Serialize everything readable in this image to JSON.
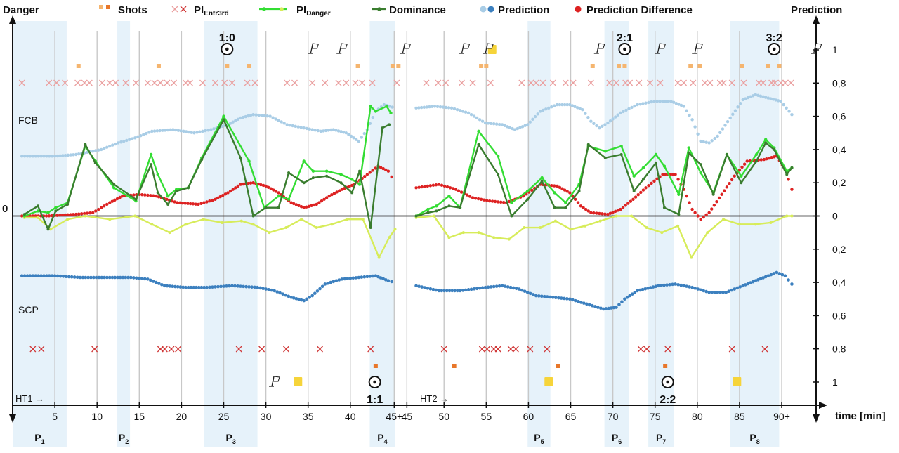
{
  "chart_data": {
    "type": "line",
    "title": "",
    "xlabel": "time [min]",
    "ylabel_left": "Danger",
    "ylabel_right": "Prediction",
    "team_top": "FCB",
    "team_bottom": "SCP",
    "zero_label": "0",
    "half_labels": [
      "HT1 →",
      "HT2 →"
    ],
    "ylim": [
      -1.0,
      1.0
    ],
    "y_ticks_right": [
      "1",
      "0,8",
      "0,6",
      "0,4",
      "0,2",
      "0",
      "0,2",
      "0,4",
      "0,6",
      "0,8",
      "1"
    ],
    "y_tick_values": [
      1,
      0.8,
      0.6,
      0.4,
      0.2,
      0,
      -0.2,
      -0.4,
      -0.6,
      -0.8,
      -1
    ],
    "x_ticks": [
      {
        "label": "5",
        "t": 5
      },
      {
        "label": "10",
        "t": 10
      },
      {
        "label": "15",
        "t": 15
      },
      {
        "label": "20",
        "t": 20
      },
      {
        "label": "25",
        "t": 25
      },
      {
        "label": "30",
        "t": 30
      },
      {
        "label": "35",
        "t": 35
      },
      {
        "label": "40",
        "t": 40
      },
      {
        "label": "45+",
        "t": 45.2
      },
      {
        "label": "45",
        "t": 46.7
      },
      {
        "label": "50",
        "t": 51.1
      },
      {
        "label": "55",
        "t": 56.1
      },
      {
        "label": "60",
        "t": 61.1
      },
      {
        "label": "65",
        "t": 66.1
      },
      {
        "label": "70",
        "t": 71.1
      },
      {
        "label": "75",
        "t": 76.1
      },
      {
        "label": "80",
        "t": 81.1
      },
      {
        "label": "85",
        "t": 86.1
      },
      {
        "label": "90+",
        "t": 91.1
      }
    ],
    "legend": [
      {
        "label": "Danger",
        "kind": "text"
      },
      {
        "label": "Shots",
        "kind": "square",
        "color": "#f0a050"
      },
      {
        "label": "PI",
        "sub": "Entr3rd",
        "kind": "cross",
        "color": "#e07070"
      },
      {
        "label": "PI",
        "sub": "Danger",
        "kind": "line",
        "color": "#33dd33"
      },
      {
        "label": "Dominance",
        "kind": "line",
        "color": "#3a7d2f"
      },
      {
        "label": "Prediction",
        "kind": "dots",
        "color": "#6fa8dc"
      },
      {
        "label": "Prediction Difference",
        "kind": "dot",
        "color": "#dd2222"
      }
    ],
    "periods": [
      {
        "label": "P",
        "sub": "1",
        "from": 0,
        "to": 6.4
      },
      {
        "label": "P",
        "sub": "2",
        "from": 12.4,
        "to": 13.9
      },
      {
        "label": "P",
        "sub": "3",
        "from": 22.7,
        "to": 29.0
      },
      {
        "label": "P",
        "sub": "4",
        "from": 42.3,
        "to": 45.3
      },
      {
        "label": "P",
        "sub": "5",
        "from": 61.0,
        "to": 63.7
      },
      {
        "label": "P",
        "sub": "6",
        "from": 70.1,
        "to": 73.0
      },
      {
        "label": "P",
        "sub": "7",
        "from": 75.3,
        "to": 78.3
      },
      {
        "label": "P",
        "sub": "8",
        "from": 85.0,
        "to": 90.8
      }
    ],
    "goals": [
      {
        "score": "1:0",
        "t": 25.4,
        "team": "top"
      },
      {
        "score": "2:1",
        "t": 72.5,
        "team": "top"
      },
      {
        "score": "3:2",
        "t": 90.2,
        "team": "top"
      },
      {
        "score": "1:1",
        "t": 42.9,
        "team": "bottom"
      },
      {
        "score": "2:2",
        "t": 77.6,
        "team": "bottom"
      }
    ],
    "flags_top": [
      35.3,
      38.7,
      46.2,
      53.2,
      56.0,
      69.2,
      76.4,
      80.8,
      94.9
    ],
    "flags_bottom": [
      30.7
    ],
    "cards_top": [
      56.8
    ],
    "cards_bottom": [
      33.8,
      63.5,
      85.8
    ],
    "shots_top": [
      7.8,
      17.3,
      25.4,
      28.0,
      40.9,
      45.0,
      45.7,
      55.5,
      56.1,
      68.7,
      71.8,
      72.5,
      80.3,
      81.4,
      86.4,
      89.5,
      90.8
    ],
    "shots_bottom": [
      43.0,
      52.3,
      64.6,
      77.3
    ],
    "pi_entr3rd_top": [
      1.1,
      4.3,
      5.2,
      6.2,
      7.7,
      8.5,
      9.1,
      10.6,
      11.5,
      12.2,
      13.4,
      14.6,
      16.0,
      16.8,
      17.5,
      18.3,
      19.1,
      20.5,
      21.0,
      22.5,
      24.0,
      25.1,
      26.0,
      27.8,
      28.7,
      32.5,
      33.4,
      35.5,
      37.0,
      38.6,
      39.5,
      40.6,
      41.4,
      42.6,
      45.5,
      49.0,
      50.4,
      51.3,
      53.2,
      54.5,
      56.6,
      60.3,
      61.4,
      62.0,
      62.8,
      64.0,
      65.5,
      66.4,
      68.5,
      70.7,
      71.5,
      72.6,
      73.1,
      74.2,
      75.5,
      76.7,
      78.8,
      79.5,
      80.6,
      82.0,
      82.6,
      83.8,
      84.2,
      85.2,
      86.6,
      88.4,
      88.9,
      89.9,
      90.3,
      91.0,
      91.5,
      92.2
    ],
    "pi_entr3rd_bottom": [
      2.4,
      3.4,
      9.7,
      17.5,
      18.0,
      18.8,
      19.6,
      26.8,
      29.5,
      32.4,
      36.4,
      42.4,
      51.1,
      55.6,
      56.2,
      57.0,
      57.5,
      59.0,
      59.6,
      61.3,
      63.3,
      74.4,
      75.1,
      77.6,
      85.2,
      89.1
    ],
    "x_pi_danger": [
      1.4,
      3.0,
      4.2,
      5.1,
      6.5,
      8.6,
      9.8,
      12.0,
      14.6,
      16.4,
      17.2,
      18.4,
      19.4,
      20.8,
      22.4,
      25.0,
      28.0,
      29.8,
      31.5,
      32.7,
      34.5,
      35.6,
      37.2,
      38.9,
      40.2,
      41.1,
      42.4,
      43.0,
      44.3,
      44.8
    ],
    "y_pi_danger": [
      0.0,
      0.03,
      0.02,
      0.05,
      0.08,
      0.42,
      0.33,
      0.17,
      0.09,
      0.37,
      0.25,
      0.12,
      0.16,
      0.17,
      0.35,
      0.6,
      0.33,
      0.05,
      0.12,
      0.1,
      0.33,
      0.27,
      0.27,
      0.25,
      0.22,
      0.19,
      0.66,
      0.63,
      0.66,
      0.62
    ],
    "x_dominance": [
      1.4,
      3.0,
      4.2,
      5.1,
      6.5,
      8.6,
      9.8,
      12.0,
      14.6,
      16.4,
      17.2,
      18.4,
      19.4,
      20.8,
      22.4,
      25.0,
      27.0,
      28.5,
      30.0,
      31.5,
      32.7,
      34.5,
      35.6,
      37.2,
      38.9,
      40.2,
      41.1,
      42.4,
      43.8,
      44.6
    ],
    "y_dominance": [
      0.01,
      0.06,
      -0.08,
      0.03,
      0.07,
      0.43,
      0.32,
      0.19,
      0.1,
      0.31,
      0.14,
      0.07,
      0.15,
      0.17,
      0.34,
      0.58,
      0.35,
      -0.0,
      0.05,
      0.05,
      0.26,
      0.2,
      0.23,
      0.24,
      0.2,
      0.14,
      0.27,
      -0.07,
      0.53,
      0.55
    ],
    "pi_danger_top2_x": [
      47.8,
      49.2,
      50.2,
      51.7,
      53.0,
      55.2,
      57.5,
      59.1,
      61.0,
      62.7,
      64.2,
      65.5,
      67.1,
      68.2,
      70.2,
      72.1,
      73.6,
      74.7,
      76.2,
      77.2,
      78.9,
      80.1,
      81.5,
      83.0,
      84.6,
      86.3,
      88.1,
      89.2,
      90.2,
      91.7,
      92.3
    ],
    "pi_danger_top2_y": [
      0.0,
      0.04,
      0.06,
      0.12,
      0.05,
      0.51,
      0.36,
      0.08,
      0.15,
      0.23,
      0.14,
      0.08,
      0.19,
      0.42,
      0.39,
      0.42,
      0.24,
      0.29,
      0.37,
      0.3,
      0.13,
      0.41,
      0.26,
      0.14,
      0.37,
      0.24,
      0.37,
      0.46,
      0.41,
      0.27,
      0.29
    ],
    "dominance_top2_x": [
      47.8,
      49.2,
      50.2,
      51.7,
      53.0,
      55.2,
      57.5,
      59.1,
      61.0,
      62.7,
      64.2,
      65.5,
      67.1,
      68.2,
      70.2,
      72.1,
      73.6,
      74.7,
      76.2,
      77.2,
      78.9,
      80.1,
      81.5,
      83.0,
      84.6,
      86.3,
      88.1,
      89.2,
      90.2,
      91.7,
      92.3
    ],
    "dominance_top2_y": [
      0.0,
      0.02,
      0.03,
      0.06,
      0.05,
      0.43,
      0.25,
      0.0,
      0.1,
      0.21,
      0.05,
      0.05,
      0.15,
      0.43,
      0.35,
      0.37,
      0.15,
      0.22,
      0.32,
      0.05,
      0.01,
      0.38,
      0.31,
      0.13,
      0.37,
      0.2,
      0.33,
      0.44,
      0.4,
      0.25,
      0.29
    ],
    "pi_danger_bottom_x": [
      1.4,
      3.0,
      4.5,
      6.5,
      8.6,
      11.5,
      14.5,
      16.5,
      18.6,
      20.5,
      22.6,
      24.8,
      27.1,
      28.5,
      30.4,
      32.4,
      34.2,
      36.0,
      37.8,
      39.6,
      41.5,
      43.4,
      44.6,
      45.3
    ],
    "pi_danger_bottom_y": [
      -0.01,
      -0.01,
      -0.08,
      -0.02,
      -0.0,
      -0.02,
      0.0,
      -0.05,
      -0.1,
      -0.05,
      -0.02,
      -0.04,
      -0.03,
      -0.05,
      -0.1,
      -0.07,
      -0.02,
      -0.07,
      -0.05,
      -0.02,
      -0.02,
      -0.25,
      -0.13,
      -0.08
    ],
    "pi_danger_bottom2_x": [
      47.8,
      49.9,
      51.7,
      53.4,
      55.2,
      57.0,
      58.8,
      60.6,
      62.5,
      64.3,
      66.1,
      67.8,
      69.6,
      71.5,
      73.3,
      75.1,
      76.9,
      78.8,
      80.4,
      82.3,
      84.2,
      86.1,
      88.0,
      89.8,
      91.7,
      92.3
    ],
    "pi_danger_bottom2_y": [
      -0.01,
      0.0,
      -0.13,
      -0.1,
      -0.1,
      -0.13,
      -0.14,
      -0.07,
      -0.07,
      -0.03,
      -0.08,
      -0.06,
      -0.03,
      0.0,
      0.0,
      -0.07,
      -0.1,
      -0.06,
      -0.25,
      -0.1,
      -0.02,
      -0.05,
      -0.05,
      -0.04,
      0.0,
      0.0
    ],
    "pred_top": [
      [
        1.1,
        0.36
      ],
      [
        5.0,
        0.36
      ],
      [
        7.5,
        0.37
      ],
      [
        10.5,
        0.4
      ],
      [
        12.5,
        0.44
      ],
      [
        14.5,
        0.47
      ],
      [
        16.5,
        0.51
      ],
      [
        19.0,
        0.52
      ],
      [
        21.5,
        0.5
      ],
      [
        23.5,
        0.52
      ],
      [
        25.5,
        0.55
      ],
      [
        27.0,
        0.59
      ],
      [
        28.5,
        0.61
      ],
      [
        30.5,
        0.6
      ],
      [
        32.5,
        0.55
      ],
      [
        34.5,
        0.53
      ],
      [
        36.5,
        0.51
      ],
      [
        38.0,
        0.52
      ],
      [
        39.5,
        0.5
      ],
      [
        41.0,
        0.45
      ],
      [
        42.0,
        0.52
      ],
      [
        43.0,
        0.63
      ],
      [
        44.0,
        0.67
      ],
      [
        45.3,
        0.65
      ],
      [
        47.8,
        0.65
      ],
      [
        50.0,
        0.66
      ],
      [
        52.0,
        0.65
      ],
      [
        54.0,
        0.62
      ],
      [
        56.0,
        0.56
      ],
      [
        58.0,
        0.55
      ],
      [
        59.5,
        0.52
      ],
      [
        61.0,
        0.55
      ],
      [
        62.5,
        0.63
      ],
      [
        64.5,
        0.67
      ],
      [
        66.0,
        0.67
      ],
      [
        67.5,
        0.64
      ],
      [
        68.5,
        0.57
      ],
      [
        69.5,
        0.53
      ],
      [
        70.5,
        0.56
      ],
      [
        72.0,
        0.62
      ],
      [
        74.0,
        0.67
      ],
      [
        76.0,
        0.69
      ],
      [
        78.0,
        0.69
      ],
      [
        79.5,
        0.66
      ],
      [
        80.5,
        0.58
      ],
      [
        81.5,
        0.45
      ],
      [
        82.5,
        0.44
      ],
      [
        83.5,
        0.48
      ],
      [
        85.0,
        0.59
      ],
      [
        86.5,
        0.7
      ],
      [
        88.0,
        0.73
      ],
      [
        89.5,
        0.71
      ],
      [
        91.0,
        0.69
      ],
      [
        92.3,
        0.61
      ]
    ],
    "pred_bottom": [
      [
        1.1,
        -0.36
      ],
      [
        5.0,
        -0.36
      ],
      [
        8.0,
        -0.37
      ],
      [
        11.5,
        -0.37
      ],
      [
        14.0,
        -0.37
      ],
      [
        16.0,
        -0.38
      ],
      [
        18.0,
        -0.42
      ],
      [
        20.5,
        -0.43
      ],
      [
        23.0,
        -0.43
      ],
      [
        26.0,
        -0.42
      ],
      [
        29.0,
        -0.43
      ],
      [
        31.0,
        -0.45
      ],
      [
        33.0,
        -0.49
      ],
      [
        34.5,
        -0.51
      ],
      [
        35.5,
        -0.48
      ],
      [
        37.0,
        -0.41
      ],
      [
        39.0,
        -0.38
      ],
      [
        41.0,
        -0.37
      ],
      [
        43.0,
        -0.36
      ],
      [
        44.5,
        -0.39
      ],
      [
        45.3,
        -0.4
      ],
      [
        47.8,
        -0.42
      ],
      [
        50.5,
        -0.45
      ],
      [
        53.0,
        -0.45
      ],
      [
        56.0,
        -0.43
      ],
      [
        58.0,
        -0.42
      ],
      [
        60.0,
        -0.44
      ],
      [
        62.0,
        -0.48
      ],
      [
        64.0,
        -0.49
      ],
      [
        66.0,
        -0.5
      ],
      [
        68.0,
        -0.53
      ],
      [
        70.0,
        -0.56
      ],
      [
        71.5,
        -0.55
      ],
      [
        72.5,
        -0.5
      ],
      [
        74.0,
        -0.45
      ],
      [
        76.5,
        -0.42
      ],
      [
        78.5,
        -0.41
      ],
      [
        80.5,
        -0.43
      ],
      [
        82.5,
        -0.46
      ],
      [
        84.5,
        -0.46
      ],
      [
        86.5,
        -0.42
      ],
      [
        88.0,
        -0.39
      ],
      [
        89.5,
        -0.36
      ],
      [
        90.5,
        -0.34
      ],
      [
        91.5,
        -0.36
      ],
      [
        92.3,
        -0.41
      ]
    ],
    "pred_diff": [
      [
        1.1,
        0.0
      ],
      [
        4.0,
        0.0
      ],
      [
        7.5,
        0.01
      ],
      [
        9.5,
        0.02
      ],
      [
        11.5,
        0.08
      ],
      [
        13.0,
        0.12
      ],
      [
        15.0,
        0.13
      ],
      [
        17.0,
        0.12
      ],
      [
        19.5,
        0.08
      ],
      [
        22.0,
        0.07
      ],
      [
        24.0,
        0.1
      ],
      [
        25.5,
        0.14
      ],
      [
        27.0,
        0.19
      ],
      [
        28.5,
        0.2
      ],
      [
        30.0,
        0.18
      ],
      [
        31.5,
        0.14
      ],
      [
        33.0,
        0.08
      ],
      [
        34.5,
        0.05
      ],
      [
        36.0,
        0.07
      ],
      [
        37.5,
        0.12
      ],
      [
        39.0,
        0.16
      ],
      [
        40.5,
        0.19
      ],
      [
        42.0,
        0.25
      ],
      [
        43.3,
        0.3
      ],
      [
        44.5,
        0.27
      ],
      [
        45.3,
        0.2
      ],
      [
        47.8,
        0.17
      ],
      [
        50.5,
        0.19
      ],
      [
        52.5,
        0.16
      ],
      [
        54.5,
        0.11
      ],
      [
        56.5,
        0.09
      ],
      [
        58.5,
        0.08
      ],
      [
        60.5,
        0.12
      ],
      [
        62.5,
        0.19
      ],
      [
        64.5,
        0.18
      ],
      [
        66.0,
        0.14
      ],
      [
        67.3,
        0.06
      ],
      [
        68.5,
        0.02
      ],
      [
        70.5,
        0.01
      ],
      [
        72.0,
        0.04
      ],
      [
        73.5,
        0.1
      ],
      [
        75.0,
        0.17
      ],
      [
        77.0,
        0.25
      ],
      [
        78.5,
        0.25
      ],
      [
        79.5,
        0.16
      ],
      [
        80.5,
        0.04
      ],
      [
        81.5,
        -0.02
      ],
      [
        82.5,
        0.02
      ],
      [
        84.0,
        0.13
      ],
      [
        85.5,
        0.24
      ],
      [
        87.0,
        0.33
      ],
      [
        89.0,
        0.34
      ],
      [
        90.5,
        0.36
      ],
      [
        91.5,
        0.28
      ],
      [
        92.3,
        0.16
      ]
    ]
  }
}
